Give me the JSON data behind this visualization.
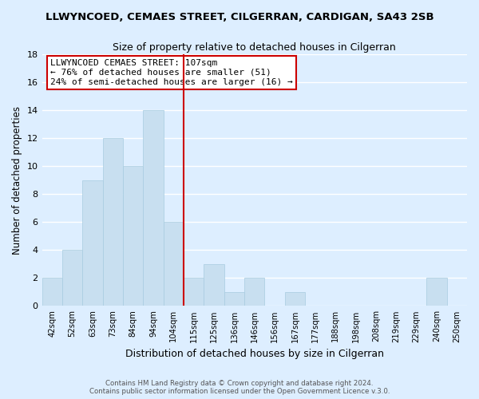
{
  "title": "LLWYNCOED, CEMAES STREET, CILGERRAN, CARDIGAN, SA43 2SB",
  "subtitle": "Size of property relative to detached houses in Cilgerran",
  "xlabel": "Distribution of detached houses by size in Cilgerran",
  "ylabel": "Number of detached properties",
  "bar_labels": [
    "42sqm",
    "52sqm",
    "63sqm",
    "73sqm",
    "84sqm",
    "94sqm",
    "104sqm",
    "115sqm",
    "125sqm",
    "136sqm",
    "146sqm",
    "156sqm",
    "167sqm",
    "177sqm",
    "188sqm",
    "198sqm",
    "208sqm",
    "219sqm",
    "229sqm",
    "240sqm",
    "250sqm"
  ],
  "bar_values": [
    2,
    4,
    9,
    12,
    10,
    14,
    6,
    2,
    3,
    1,
    2,
    0,
    1,
    0,
    0,
    0,
    0,
    0,
    0,
    2,
    0
  ],
  "bar_color": "#c8dff0",
  "bar_edge_color": "#a8cce0",
  "highlight_bar_index": 6,
  "highlight_color": "#cc0000",
  "ylim": [
    0,
    18
  ],
  "yticks": [
    0,
    2,
    4,
    6,
    8,
    10,
    12,
    14,
    16,
    18
  ],
  "annotation_title": "LLWYNCOED CEMAES STREET: 107sqm",
  "annotation_line1": "← 76% of detached houses are smaller (51)",
  "annotation_line2": "24% of semi-detached houses are larger (16) →",
  "annotation_box_color": "#ffffff",
  "annotation_box_edge": "#cc0000",
  "footer1": "Contains HM Land Registry data © Crown copyright and database right 2024.",
  "footer2": "Contains public sector information licensed under the Open Government Licence v.3.0.",
  "background_color": "#ddeeff",
  "grid_color": "#ffffff"
}
